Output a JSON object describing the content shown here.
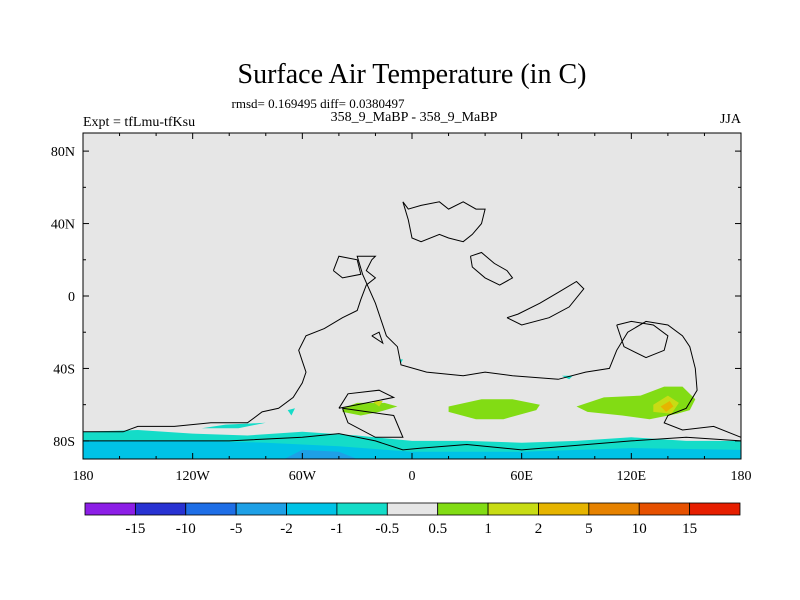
{
  "chart_data": {
    "type": "heatmap",
    "title": "Surface Air Temperature (in C)",
    "stats_line": "rmsd= 0.169495 diff= 0.0380497",
    "subtitle": "358_9_MaBP - 358_9_MaBP",
    "left_label": "Expt = tfLmu-tfKsu",
    "right_label": "JJA",
    "x_range": [
      -180,
      180
    ],
    "y_range": [
      -90,
      90
    ],
    "x_ticks": [
      {
        "value": -180,
        "label": "180"
      },
      {
        "value": -120,
        "label": "120W"
      },
      {
        "value": -60,
        "label": "60W"
      },
      {
        "value": 0,
        "label": "0"
      },
      {
        "value": 60,
        "label": "60E"
      },
      {
        "value": 120,
        "label": "120E"
      },
      {
        "value": 180,
        "label": "180"
      }
    ],
    "y_ticks": [
      {
        "value": 80,
        "label": "80N"
      },
      {
        "value": 40,
        "label": "40N"
      },
      {
        "value": 0,
        "label": "0"
      },
      {
        "value": -40,
        "label": "40S"
      },
      {
        "value": -80,
        "label": "80S"
      }
    ],
    "background_color": "#e6e6e6",
    "colorbar": {
      "colors": [
        "#8c1ee6",
        "#2832d2",
        "#1e6ee6",
        "#1ea0e6",
        "#00c3e6",
        "#14dcc8",
        "#e6e6e6",
        "#82dc14",
        "#c8dc14",
        "#e6b400",
        "#e68200",
        "#e65000",
        "#e61e00"
      ],
      "levels": [
        "-15",
        "-10",
        "-5",
        "-2",
        "-1",
        "-0.5",
        "0.5",
        "1",
        "2",
        "5",
        "10",
        "15"
      ]
    },
    "coastlines": [
      [
        [
          -180,
          -75
        ],
        [
          -158,
          -75
        ],
        [
          -150,
          -72
        ],
        [
          -130,
          -72
        ],
        [
          -110,
          -70
        ],
        [
          -90,
          -70
        ],
        [
          -82,
          -64
        ],
        [
          -73,
          -62
        ],
        [
          -65,
          -56
        ],
        [
          -60,
          -48
        ],
        [
          -58,
          -42
        ],
        [
          -60,
          -36
        ],
        [
          -62,
          -30
        ],
        [
          -58,
          -22
        ],
        [
          -48,
          -18
        ],
        [
          -38,
          -12
        ],
        [
          -30,
          -8
        ],
        [
          -28,
          -2
        ],
        [
          -25,
          6
        ],
        [
          -20,
          10
        ],
        [
          -25,
          14
        ],
        [
          -22,
          20
        ],
        [
          -20,
          22
        ],
        [
          -30,
          22
        ],
        [
          -27,
          12
        ],
        [
          -20,
          -4
        ],
        [
          -14,
          -22
        ],
        [
          -8,
          -28
        ],
        [
          -6,
          -38
        ],
        [
          8,
          -42
        ],
        [
          28,
          -44
        ],
        [
          40,
          -42
        ],
        [
          55,
          -44
        ],
        [
          80,
          -46
        ],
        [
          95,
          -42
        ],
        [
          108,
          -40
        ],
        [
          112,
          -30
        ],
        [
          118,
          -20
        ],
        [
          128,
          -14
        ],
        [
          140,
          -16
        ],
        [
          148,
          -22
        ],
        [
          152,
          -28
        ],
        [
          155,
          -40
        ],
        [
          156,
          -52
        ],
        [
          150,
          -62
        ],
        [
          140,
          -66
        ],
        [
          138,
          -70
        ],
        [
          148,
          -74
        ],
        [
          165,
          -72
        ],
        [
          180,
          -78
        ]
      ],
      [
        [
          -180,
          -80
        ],
        [
          -140,
          -80
        ],
        [
          -100,
          -80
        ],
        [
          -60,
          -78
        ],
        [
          -40,
          -76
        ],
        [
          -20,
          -80
        ],
        [
          -5,
          -85
        ],
        [
          5,
          -84
        ],
        [
          30,
          -82
        ],
        [
          60,
          -85
        ],
        [
          120,
          -80
        ],
        [
          150,
          -78
        ],
        [
          180,
          -80
        ]
      ],
      [
        [
          -40,
          -62
        ],
        [
          -35,
          -54
        ],
        [
          -18,
          -52
        ],
        [
          -10,
          -56
        ],
        [
          -30,
          -60
        ],
        [
          -40,
          -62
        ]
      ],
      [
        [
          -38,
          -62
        ],
        [
          -35,
          -70
        ],
        [
          -20,
          -78
        ],
        [
          -5,
          -78
        ],
        [
          -10,
          -66
        ],
        [
          -38,
          -62
        ]
      ],
      [
        [
          -5,
          52
        ],
        [
          -2,
          48
        ],
        [
          5,
          50
        ],
        [
          15,
          52
        ],
        [
          20,
          48
        ],
        [
          28,
          52
        ],
        [
          35,
          48
        ],
        [
          40,
          48
        ],
        [
          38,
          40
        ],
        [
          33,
          34
        ],
        [
          28,
          30
        ],
        [
          20,
          32
        ],
        [
          15,
          34
        ],
        [
          5,
          30
        ],
        [
          0,
          32
        ],
        [
          -2,
          42
        ],
        [
          -5,
          52
        ]
      ],
      [
        [
          32,
          22
        ],
        [
          38,
          24
        ],
        [
          45,
          18
        ],
        [
          52,
          14
        ],
        [
          55,
          10
        ],
        [
          48,
          6
        ],
        [
          40,
          10
        ],
        [
          33,
          16
        ],
        [
          32,
          22
        ]
      ],
      [
        [
          52,
          -12
        ],
        [
          58,
          -10
        ],
        [
          70,
          -4
        ],
        [
          80,
          2
        ],
        [
          90,
          8
        ],
        [
          94,
          4
        ],
        [
          86,
          -6
        ],
        [
          75,
          -12
        ],
        [
          60,
          -16
        ],
        [
          52,
          -12
        ]
      ],
      [
        [
          112,
          -16
        ],
        [
          120,
          -14
        ],
        [
          132,
          -16
        ],
        [
          140,
          -22
        ],
        [
          138,
          -30
        ],
        [
          128,
          -34
        ],
        [
          116,
          -28
        ],
        [
          112,
          -16
        ]
      ],
      [
        [
          -43,
          14
        ],
        [
          -40,
          22
        ],
        [
          -30,
          20
        ],
        [
          -28,
          12
        ],
        [
          -38,
          10
        ],
        [
          -43,
          14
        ]
      ],
      [
        [
          -22,
          -22
        ],
        [
          -18,
          -20
        ],
        [
          -16,
          -26
        ],
        [
          -22,
          -22
        ]
      ]
    ]
  }
}
